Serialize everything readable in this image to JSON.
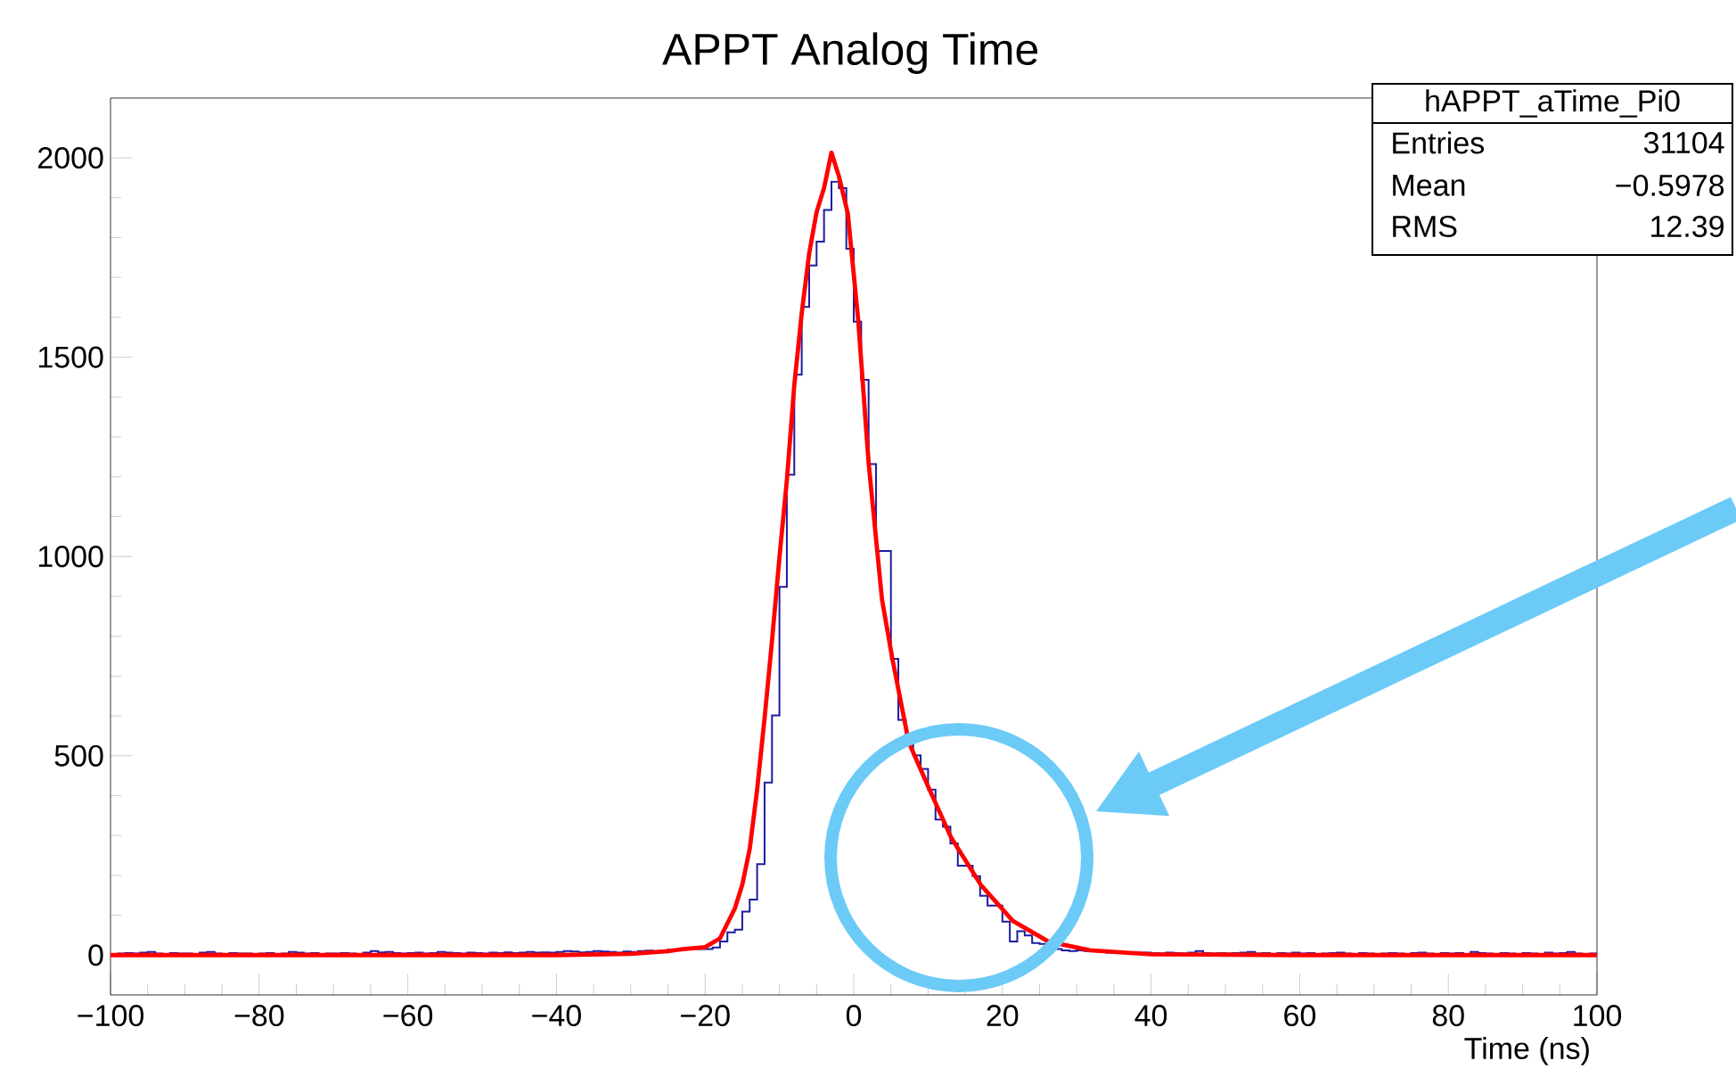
{
  "chart_data": {
    "type": "histogram",
    "title": "APPT Analog Time",
    "xlabel": "Time (ns)",
    "xlim": [
      -100,
      100
    ],
    "ylim": [
      -100,
      2150
    ],
    "xticks": [
      {
        "value": -100,
        "label": "−100"
      },
      {
        "value": -80,
        "label": "−80"
      },
      {
        "value": -60,
        "label": "−60"
      },
      {
        "value": -40,
        "label": "−40"
      },
      {
        "value": -20,
        "label": "−20"
      },
      0,
      20,
      40,
      60,
      80,
      100
    ],
    "yticks": [
      0,
      500,
      1000,
      1500,
      2000
    ],
    "annotations": [
      "hAPPT_aTime_Pi0",
      "Entries",
      "31104",
      "Mean",
      "−0.5978",
      "RMS",
      "12.39"
    ],
    "series": [
      {
        "type": "histogram",
        "color": "#1c1ca0",
        "bins": [
          -100,
          -99,
          -98,
          -97,
          -96,
          -95,
          -94,
          -93,
          -92,
          -91,
          -90,
          -89,
          -88,
          -87,
          -86,
          -85,
          -84,
          -83,
          -82,
          -81,
          -80,
          -79,
          -78,
          -77,
          -76,
          -75,
          -74,
          -73,
          -72,
          -71,
          -70,
          -69,
          -68,
          -67,
          -66,
          -65,
          -64,
          -63,
          -62,
          -61,
          -60,
          -59,
          -58,
          -57,
          -56,
          -55,
          -54,
          -53,
          -52,
          -51,
          -50,
          -49,
          -48,
          -47,
          -46,
          -45,
          -44,
          -43,
          -42,
          -41,
          -40,
          -39,
          -38,
          -37,
          -36,
          -35,
          -34,
          -33,
          -32,
          -31,
          -30,
          -29,
          -28,
          -27,
          -26,
          -25,
          -24,
          -23,
          -22,
          -21,
          -20,
          -19,
          -18,
          -17,
          -16,
          -15,
          -14,
          -13,
          -12,
          -11,
          -10,
          -9,
          -8,
          -7,
          -6,
          -5,
          -4,
          -3,
          -2,
          -1,
          0,
          1,
          2,
          3,
          4,
          5,
          6,
          7,
          8,
          9,
          10,
          11,
          12,
          13,
          14,
          15,
          16,
          17,
          18,
          19,
          20,
          21,
          22,
          23,
          24,
          25,
          26,
          27,
          28,
          29,
          30,
          31,
          32,
          33,
          34,
          35,
          36,
          37,
          38,
          39,
          40,
          41,
          42,
          43,
          44,
          45,
          46,
          47,
          48,
          49,
          50,
          51,
          52,
          53,
          54,
          55,
          56,
          57,
          58,
          59,
          60,
          61,
          62,
          63,
          64,
          65,
          66,
          67,
          68,
          69,
          70,
          71,
          72,
          73,
          74,
          75,
          76,
          77,
          78,
          79,
          80,
          81,
          82,
          83,
          84,
          85,
          86,
          87,
          88,
          89,
          90,
          91,
          92,
          93,
          94,
          95,
          96,
          97,
          98,
          99,
          100
        ],
        "values": [
          3,
          4,
          5,
          4,
          6,
          8,
          4,
          3,
          5,
          4,
          4,
          3,
          6,
          8,
          4,
          3,
          5,
          4,
          4,
          3,
          4,
          5,
          3,
          4,
          8,
          6,
          4,
          5,
          3,
          4,
          4,
          5,
          4,
          3,
          6,
          10,
          7,
          8,
          5,
          4,
          5,
          6,
          4,
          5,
          8,
          6,
          5,
          4,
          6,
          5,
          4,
          6,
          5,
          7,
          5,
          6,
          8,
          6,
          7,
          6,
          8,
          10,
          9,
          7,
          8,
          10,
          9,
          8,
          6,
          9,
          8,
          10,
          11,
          9,
          12,
          14,
          13,
          15,
          16,
          15,
          15,
          19,
          34,
          57,
          64,
          109,
          139,
          228,
          433,
          601,
          924,
          1205,
          1456,
          1626,
          1730,
          1790,
          1869,
          1940,
          1924,
          1772,
          1589,
          1443,
          1232,
          1014,
          1014,
          743,
          590,
          534,
          501,
          467,
          415,
          340,
          322,
          280,
          224,
          224,
          198,
          149,
          124,
          124,
          84,
          34,
          60,
          49,
          30,
          28,
          20,
          15,
          12,
          10,
          12,
          10,
          11,
          8,
          6,
          5,
          7,
          6,
          5,
          6,
          5,
          4,
          6,
          5,
          4,
          6,
          10,
          5,
          4,
          5,
          4,
          5,
          6,
          8,
          4,
          5,
          3,
          5,
          4,
          6,
          4,
          5,
          3,
          4,
          5,
          6,
          4,
          3,
          5,
          4,
          3,
          4,
          5,
          4,
          3,
          5,
          6,
          4,
          3,
          5,
          4,
          5,
          3,
          8,
          5,
          4,
          3,
          5,
          4,
          3,
          5,
          4,
          3,
          6,
          4,
          5,
          8,
          4,
          3,
          4
        ]
      },
      {
        "type": "line",
        "color": "#ff0000",
        "x": [
          -100,
          -60,
          -40,
          -30,
          -25,
          -23,
          -20,
          -18,
          -16,
          -15,
          -14,
          -13,
          -12,
          -11,
          -10,
          -9,
          -8,
          -7,
          -6,
          -5,
          -4,
          -3,
          -2,
          -0.8,
          0.6,
          2,
          3.8,
          5.2,
          7.4,
          10.2,
          13.1,
          17.1,
          21.4,
          26.2,
          31.8,
          40,
          60,
          100
        ],
        "values": [
          0,
          0,
          0,
          3,
          10,
          15,
          20,
          42,
          117,
          176,
          266,
          415,
          594,
          788,
          997,
          1191,
          1430,
          1610,
          1760,
          1864,
          1924,
          2013,
          1954,
          1861,
          1593,
          1235,
          892,
          743,
          534,
          415,
          295,
          176,
          86,
          34,
          12,
          2,
          0,
          0
        ]
      }
    ]
  }
}
